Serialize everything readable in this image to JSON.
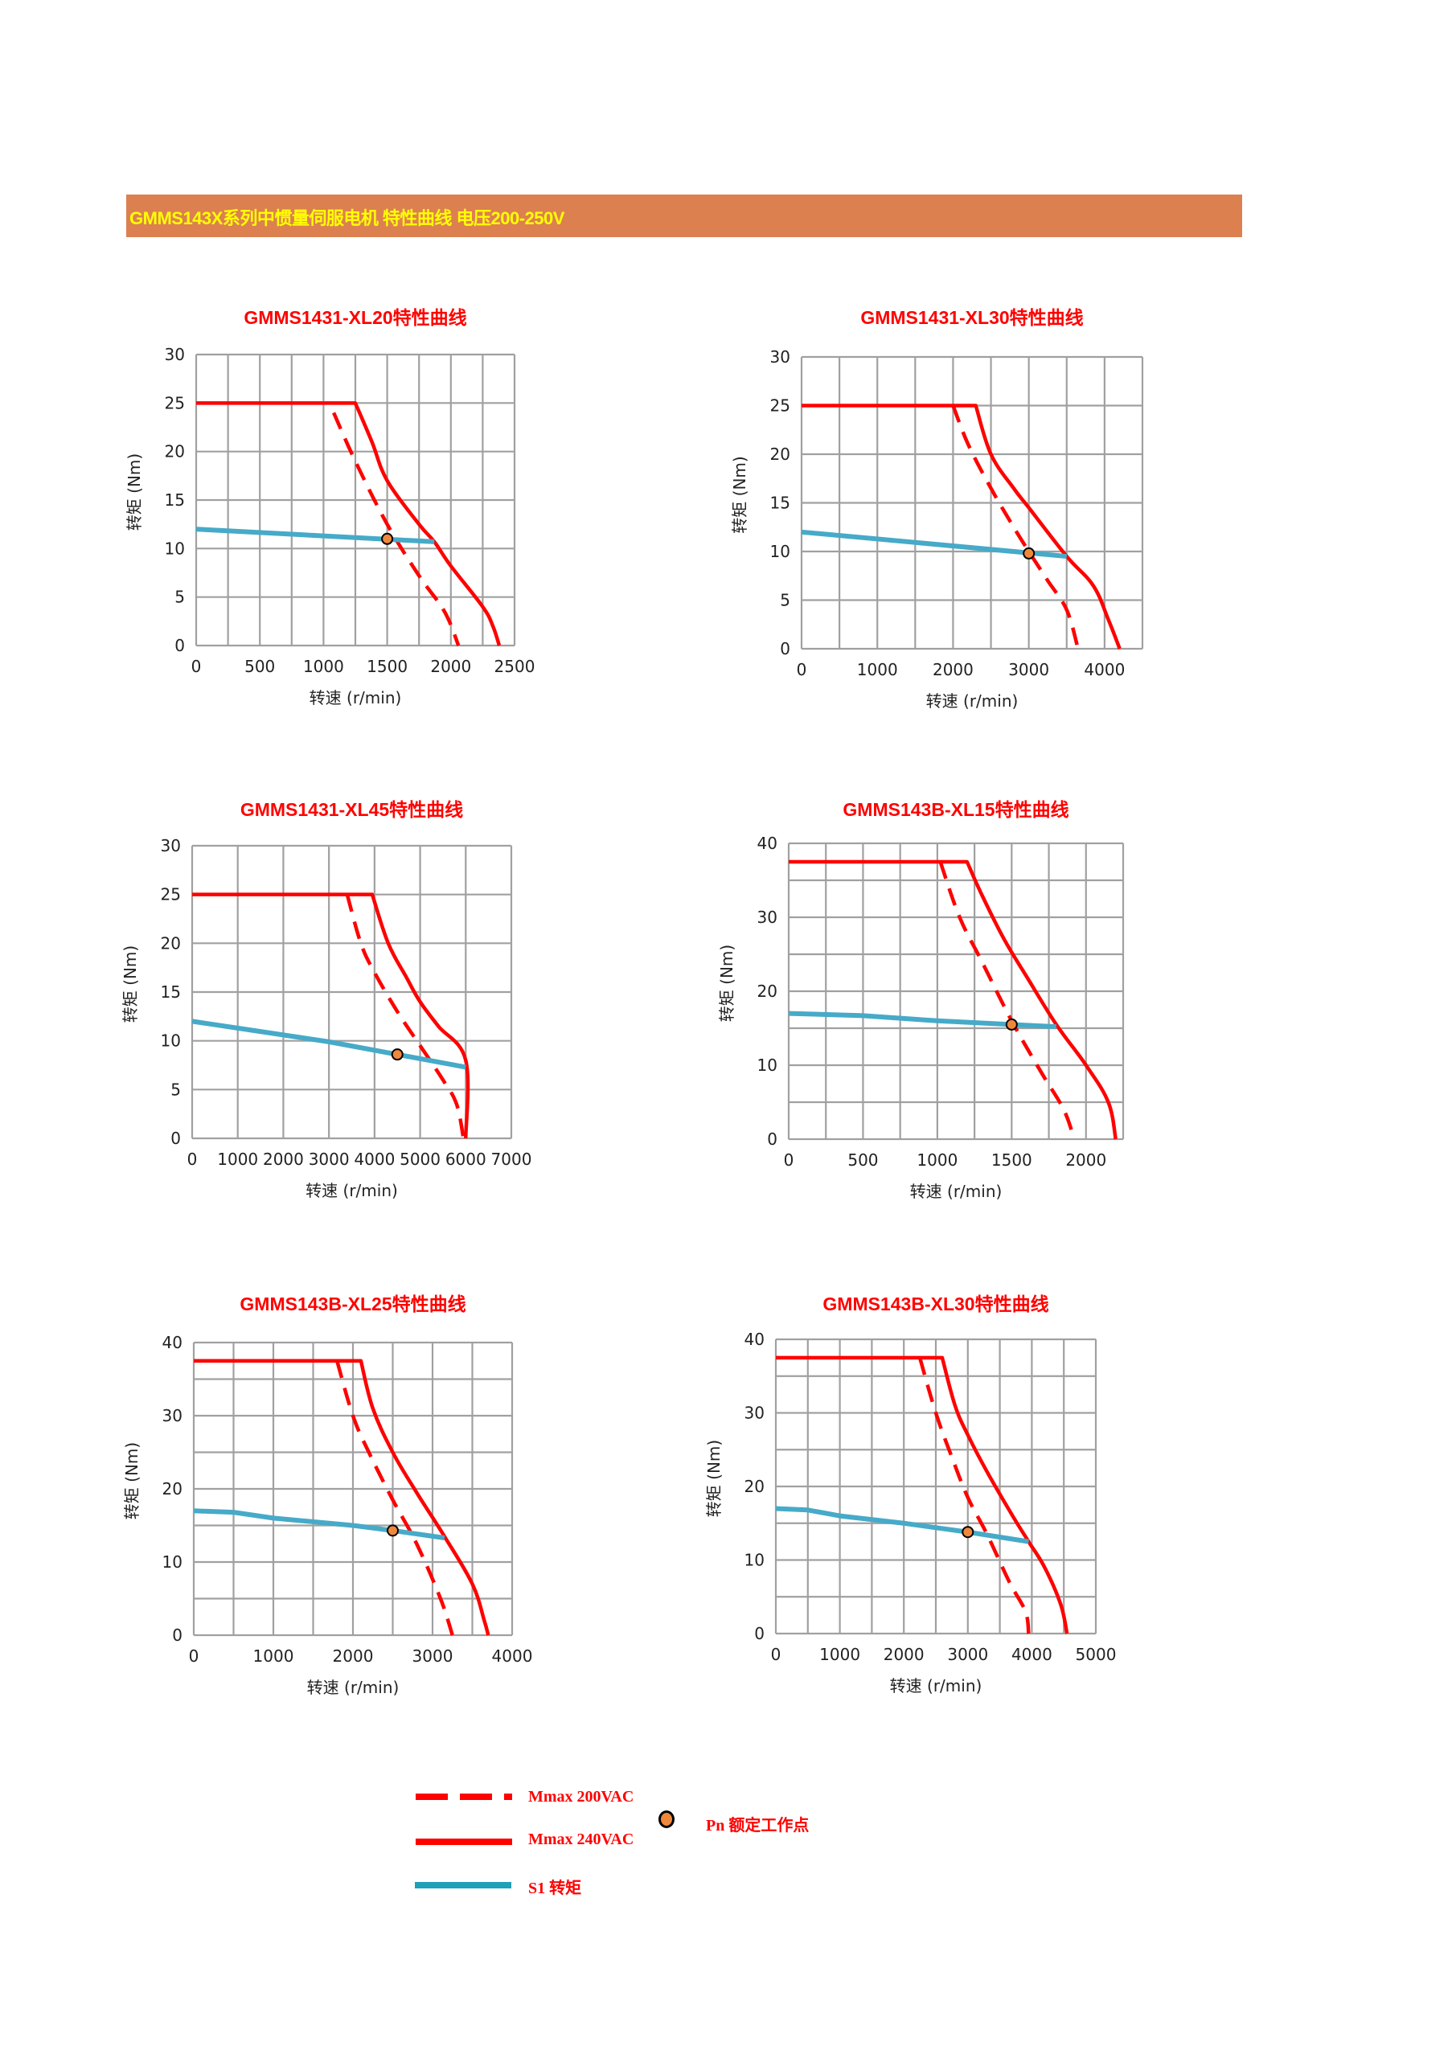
{
  "banner": {
    "title": "GMMS143X系列中惯量伺服电机 特性曲线 电压200-250V",
    "color": "#dc8050",
    "text_color": "#ffff00"
  },
  "colors": {
    "mmax_200": "#ff0000",
    "mmax_240": "#ff0000",
    "s1": "#46aac8",
    "pn_fill": "#f0883c",
    "grid": "#a0a0a0"
  },
  "legend": {
    "mmax_200": "Mmax 200VAC",
    "mmax_240": "Mmax 240VAC",
    "s1": "S1 转矩",
    "pn": "Pn 额定工作点"
  },
  "chart_data": [
    {
      "type": "line",
      "title": "GMMS1431-XL20特性曲线",
      "xlabel": "转速 (r/min)",
      "ylabel": "转矩 (Nm)",
      "xlim": [
        0,
        2500
      ],
      "ylim": [
        0,
        30
      ],
      "xgrid_step": 250,
      "ygrid_step": 5,
      "grid": true,
      "xticks": [
        0,
        500,
        1000,
        1500,
        2000,
        2500
      ],
      "yticks": [
        0,
        5,
        10,
        15,
        20,
        25,
        30
      ],
      "series": [
        {
          "name": "Mmax 240VAC",
          "style": "solid",
          "points": [
            [
              0,
              25
            ],
            [
              1250,
              25
            ],
            [
              1380,
              21
            ],
            [
              1500,
              17
            ],
            [
              1750,
              12.5
            ],
            [
              1870,
              10.7
            ],
            [
              2000,
              8.2
            ],
            [
              2250,
              4
            ],
            [
              2330,
              2
            ],
            [
              2380,
              0
            ]
          ]
        },
        {
          "name": "Mmax 200VAC",
          "style": "dashed",
          "points": [
            [
              1080,
              24
            ],
            [
              1250,
              19
            ],
            [
              1500,
              12.5
            ],
            [
              1750,
              7.2
            ],
            [
              1950,
              3.5
            ],
            [
              2060,
              0
            ]
          ]
        },
        {
          "name": "S1 转矩",
          "style": "s1",
          "points": [
            [
              0,
              12
            ],
            [
              1870,
              10.7
            ]
          ]
        }
      ],
      "pn": [
        1500,
        11
      ]
    },
    {
      "type": "line",
      "title": "GMMS1431-XL30特性曲线",
      "xlabel": "转速 (r/min)",
      "ylabel": "转矩 (Nm)",
      "xlim": [
        0,
        4500
      ],
      "ylim": [
        0,
        30
      ],
      "xgrid_step": 500,
      "ygrid_step": 5,
      "grid": true,
      "xticks": [
        0,
        1000,
        2000,
        3000,
        4000
      ],
      "yticks": [
        0,
        5,
        10,
        15,
        20,
        25,
        30
      ],
      "series": [
        {
          "name": "Mmax 240VAC",
          "style": "solid",
          "points": [
            [
              0,
              25
            ],
            [
              2300,
              25
            ],
            [
              2500,
              20
            ],
            [
              2800,
              16.5
            ],
            [
              3000,
              14.5
            ],
            [
              3500,
              9.5
            ],
            [
              3850,
              6.5
            ],
            [
              4050,
              3
            ],
            [
              4200,
              0
            ]
          ]
        },
        {
          "name": "Mmax 200VAC",
          "style": "dashed",
          "points": [
            [
              2000,
              25
            ],
            [
              2200,
              21
            ],
            [
              2500,
              16.5
            ],
            [
              2800,
              12.5
            ],
            [
              3000,
              10
            ],
            [
              3250,
              7
            ],
            [
              3500,
              4
            ],
            [
              3650,
              0
            ]
          ]
        },
        {
          "name": "S1 转矩",
          "style": "s1",
          "points": [
            [
              0,
              12
            ],
            [
              3500,
              9.5
            ]
          ]
        }
      ],
      "pn": [
        3000,
        9.8
      ]
    },
    {
      "type": "line",
      "title": "GMMS1431-XL45特性曲线",
      "xlabel": "转速 (r/min)",
      "ylabel": "转矩 (Nm)",
      "xlim": [
        0,
        7000
      ],
      "ylim": [
        0,
        30
      ],
      "xgrid_step": 1000,
      "ygrid_step": 5,
      "grid": true,
      "xticks": [
        0,
        1000,
        2000,
        3000,
        4000,
        5000,
        6000,
        7000
      ],
      "yticks": [
        0,
        5,
        10,
        15,
        20,
        25,
        30
      ],
      "series": [
        {
          "name": "Mmax 240VAC",
          "style": "solid",
          "points": [
            [
              0,
              25
            ],
            [
              3950,
              25
            ],
            [
              4300,
              20
            ],
            [
              4700,
              16.5
            ],
            [
              5000,
              14
            ],
            [
              5400,
              11.5
            ],
            [
              6000,
              8
            ],
            [
              6000,
              0
            ]
          ]
        },
        {
          "name": "Mmax 200VAC",
          "style": "dashed",
          "points": [
            [
              3400,
              25
            ],
            [
              3700,
              20
            ],
            [
              4000,
              17
            ],
            [
              4500,
              13
            ],
            [
              5000,
              9.5
            ],
            [
              5500,
              6
            ],
            [
              5800,
              3.5
            ],
            [
              5950,
              0
            ]
          ]
        },
        {
          "name": "S1 转矩",
          "style": "s1",
          "points": [
            [
              0,
              12
            ],
            [
              1000,
              11.3
            ],
            [
              3000,
              9.9
            ],
            [
              6000,
              7.3
            ]
          ]
        }
      ],
      "pn": [
        4500,
        8.6
      ]
    },
    {
      "type": "line",
      "title": "GMMS143B-XL15特性曲线",
      "xlabel": "转速 (r/min)",
      "ylabel": "转矩 (Nm)",
      "xlim": [
        0,
        2250
      ],
      "ylim": [
        0,
        40
      ],
      "xgrid_step": 250,
      "ygrid_step": 5,
      "grid": true,
      "xticks": [
        0,
        500,
        1000,
        1500,
        2000
      ],
      "yticks": [
        0,
        10,
        20,
        30,
        40
      ],
      "series": [
        {
          "name": "Mmax 240VAC",
          "style": "solid",
          "points": [
            [
              0,
              37.5
            ],
            [
              1200,
              37.5
            ],
            [
              1300,
              33
            ],
            [
              1450,
              27
            ],
            [
              1600,
              22
            ],
            [
              1800,
              15.5
            ],
            [
              2000,
              10
            ],
            [
              2150,
              5
            ],
            [
              2200,
              0
            ]
          ]
        },
        {
          "name": "Mmax 200VAC",
          "style": "dashed",
          "points": [
            [
              1020,
              37.5
            ],
            [
              1150,
              30
            ],
            [
              1300,
              24
            ],
            [
              1500,
              16
            ],
            [
              1700,
              9
            ],
            [
              1850,
              4
            ],
            [
              1920,
              0
            ]
          ]
        },
        {
          "name": "S1 转矩",
          "style": "s1",
          "points": [
            [
              0,
              17
            ],
            [
              500,
              16.7
            ],
            [
              1000,
              16
            ],
            [
              1800,
              15.2
            ]
          ]
        }
      ],
      "pn": [
        1500,
        15.5
      ]
    },
    {
      "type": "line",
      "title": "GMMS143B-XL25特性曲线",
      "xlabel": "转速 (r/min)",
      "ylabel": "转矩 (Nm)",
      "xlim": [
        0,
        4000
      ],
      "ylim": [
        0,
        40
      ],
      "xgrid_step": 500,
      "ygrid_step": 5,
      "grid": true,
      "xticks": [
        0,
        1000,
        2000,
        3000,
        4000
      ],
      "yticks": [
        0,
        10,
        20,
        30,
        40
      ],
      "series": [
        {
          "name": "Mmax 240VAC",
          "style": "solid",
          "points": [
            [
              0,
              37.5
            ],
            [
              2100,
              37.5
            ],
            [
              2250,
              31
            ],
            [
              2500,
              25
            ],
            [
              2800,
              19.5
            ],
            [
              3150,
              13.5
            ],
            [
              3500,
              7
            ],
            [
              3650,
              2
            ],
            [
              3700,
              0
            ]
          ]
        },
        {
          "name": "Mmax 200VAC",
          "style": "dashed",
          "points": [
            [
              1800,
              37.5
            ],
            [
              2000,
              30
            ],
            [
              2200,
              25
            ],
            [
              2500,
              18.5
            ],
            [
              2800,
              12.5
            ],
            [
              3100,
              5
            ],
            [
              3250,
              0
            ]
          ]
        },
        {
          "name": "S1 转矩",
          "style": "s1",
          "points": [
            [
              0,
              17
            ],
            [
              500,
              16.8
            ],
            [
              1000,
              16
            ],
            [
              2000,
              15
            ],
            [
              2500,
              14.3
            ],
            [
              3150,
              13.3
            ]
          ]
        }
      ],
      "pn": [
        2500,
        14.3
      ]
    },
    {
      "type": "line",
      "title": "GMMS143B-XL30特性曲线",
      "xlabel": "转速 (r/min)",
      "ylabel": "转矩 (Nm)",
      "xlim": [
        0,
        5000
      ],
      "ylim": [
        0,
        40
      ],
      "xgrid_step": 500,
      "ygrid_step": 5,
      "grid": true,
      "xticks": [
        0,
        1000,
        2000,
        3000,
        4000,
        5000
      ],
      "yticks": [
        0,
        10,
        20,
        30,
        40
      ],
      "series": [
        {
          "name": "Mmax 240VAC",
          "style": "solid",
          "points": [
            [
              0,
              37.5
            ],
            [
              2600,
              37.5
            ],
            [
              2800,
              31
            ],
            [
              3000,
              27
            ],
            [
              3300,
              22
            ],
            [
              3700,
              16
            ],
            [
              3950,
              12.5
            ],
            [
              4200,
              9
            ],
            [
              4450,
              4
            ],
            [
              4550,
              0
            ]
          ]
        },
        {
          "name": "Mmax 200VAC",
          "style": "dashed",
          "points": [
            [
              2250,
              37.5
            ],
            [
              2500,
              30
            ],
            [
              2750,
              24
            ],
            [
              3000,
              18.5
            ],
            [
              3300,
              13.5
            ],
            [
              3650,
              7
            ],
            [
              3900,
              3
            ],
            [
              3950,
              0
            ]
          ]
        },
        {
          "name": "S1 转矩",
          "style": "s1",
          "points": [
            [
              0,
              17
            ],
            [
              500,
              16.8
            ],
            [
              1000,
              16
            ],
            [
              2000,
              15
            ],
            [
              3000,
              13.8
            ],
            [
              3950,
              12.5
            ]
          ]
        }
      ],
      "pn": [
        3000,
        13.8
      ]
    }
  ]
}
